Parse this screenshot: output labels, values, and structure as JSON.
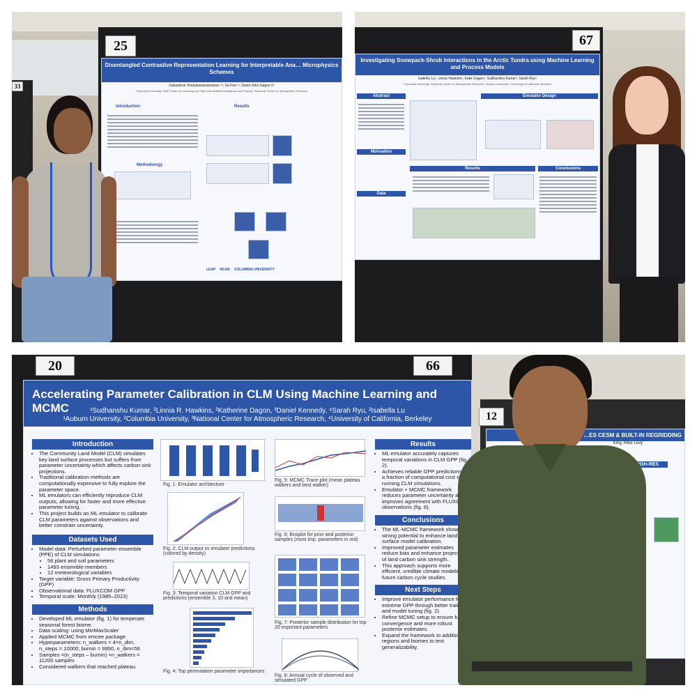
{
  "photo1": {
    "tag_number": "25",
    "side_tag": "33",
    "poster_title": "Disentangled Contrastive Representation Learning for Interpretable Ana… Microphysics Schemes",
    "authors": "Subashree Venkatasubramanian ¹³, Da Fan² ³, David John Gagne II³",
    "affiliations": "¹Columbia University, ²NSF Center for Learning the Earth with Artificial Intelligence and Physics, ³National Center for Atmospheric Research",
    "sections": [
      "Introduction",
      "Results",
      "Methodology"
    ],
    "logos": [
      "LEAP",
      "NCAR",
      "COLUMBIA UNIVERSITY"
    ]
  },
  "photo2": {
    "tag_number": "67",
    "poster_title": "Investigating Snowpack-Shrub Interactions in the Arctic Tundra using Machine Learning and Process Models",
    "authors": "Isabella Lu¹, Linnia Hawkins¹, Katie Dagon², Sudhanshu Kumar³, Sarah Ryu⁴",
    "affiliations": "¹Columbia University; ²National Center for Atmospheric Research; ³Auburn University; ⁴University of California, Berkeley",
    "sections": [
      "Abstract",
      "Emulator Design",
      "Motivation",
      "Data",
      "Results",
      "Conclusions"
    ]
  },
  "photo3": {
    "tag_left": "20",
    "tag_right": "66",
    "tag_side": "12",
    "poster_title": "Accelerating Parameter Calibration in CLM Using Machine Learning and MCMC",
    "authors": "¹Sudhanshu Kumar, ²Linnia R. Hawkins, ³Katherine Dagon, ³Daniel Kennedy, ⁴Sarah Ryu, ²Isabella Lu",
    "affiliations": "¹Auburn University, ²Columbia University, ³National Center for Atmospheric Research, ⁴University of California, Berkeley",
    "introduction": {
      "heading": "Introduction",
      "bullets": [
        "The Community Land Model (CLM) simulates key land surface processes but suffers from parameter uncertainty which affects carbon sink projections.",
        "Traditional calibration methods are computationally expensive to fully explore the parameter space.",
        "ML emulators can efficiently reproduce CLM outputs, allowing for faster and more effective parameter tuning.",
        "This project builds an ML emulator to calibrate CLM parameters against observations and better constrain uncertainty."
      ]
    },
    "datasets": {
      "heading": "Datasets Used",
      "bullets": [
        "Model data: Perturbed parameter ensemble (PPE) of CLM simulations",
        "56 plant and soil parameters",
        "1493 ensemble members",
        "12 meteorological variables",
        "Target variable: Gross Primary Productivity (GPP)",
        "Observational data: FLUXCOM GPP",
        "Temporal scale: Monthly (1985–2023)"
      ]
    },
    "methods": {
      "heading": "Methods",
      "bullets": [
        "Developed ML emulator (fig. 1) for temperate seasonal forest biome.",
        "Data scaling: using MinMaxScaler",
        "Applied MCMC from emcee package",
        "Hyperparameters: n_walkers = 4×n_dim, n_steps = 10000; burnin = 9950, n_dim=56",
        "Samples =(n_steps – burnin) ×n_walkers = 11200 samples",
        "Considered walkers that reached plateau."
      ]
    },
    "figure_captions": [
      "Fig. 1: Emulator architecture",
      "Fig. 2: CLM output vs emulator predictions (colored by density)",
      "Fig. 3: Temporal variation CLM GPP and predictions (ensemble 3, 10 and mean)",
      "Fig. 4: Top permutation parameter importances",
      "Fig. 5: MCMC Trace plot (mean plateau walkers and best walker)",
      "Fig. 6: Boxplot for prior and posterior samples (most imp. parameters in red)",
      "Fig. 7: Posterior sample distribution for top 20 important parameters",
      "Fig. 8: Annual cycle of observed and simulated GPP"
    ],
    "results": {
      "heading": "Results",
      "bullets": [
        "ML emulator accurately captures temporal variations in CLM GPP (fig. 2).",
        "Achieves reliable GPP predictions at a fraction of computational cost of running CLM simulations.",
        "Emulator + MCMC framework reduces parameter uncertainty and improves agreement with FLUXCOM observations (fig. 8)."
      ]
    },
    "conclusions": {
      "heading": "Conclusions",
      "bullets": [
        "The ML-MCMC framework shows strong potential to enhance land surface model calibration.",
        "Improved parameter estimates reduce bias and enhance projections of land carbon sink strength.",
        "This approach supports more efficient, credible climate modeling for future carbon cycle studies."
      ]
    },
    "next_steps": {
      "heading": "Next Steps",
      "bullets": [
        "Improve emulator performance for extreme GPP through better training and model tuning (fig. 2).",
        "Refine MCMC setup to ensure full convergence and more robust posterior estimates.",
        "Expand the framework to additional regions and biomes to test generalizability."
      ]
    },
    "side_poster": {
      "title_fragment": "…ES CESM & BUILT-IN REGRIDDING",
      "authors_fragment": "King, Mike Levy",
      "badge": "HIGH-RES"
    }
  },
  "colors": {
    "poster_blue": "#2d55a8",
    "board_black": "#1c1c1e",
    "shirt_green": "#4a5a3a",
    "shirt_grey": "#b9b6b0"
  }
}
